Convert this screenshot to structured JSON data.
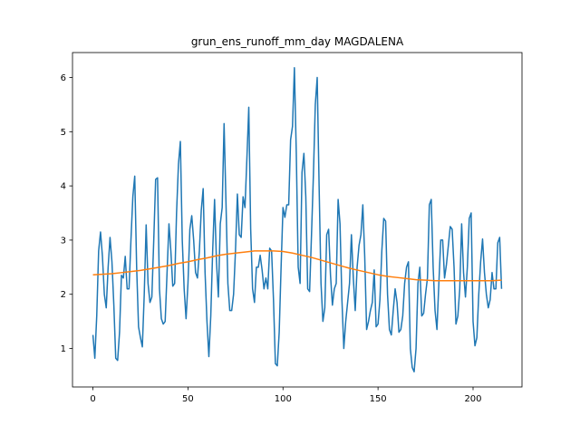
{
  "chart_data": {
    "type": "line",
    "title": "grun_ens_runoff_mm_day MAGDALENA",
    "series": [
      {
        "color": "#1f77b4",
        "x": [
          0,
          1,
          2,
          3,
          4,
          5,
          6,
          7,
          8,
          9,
          10,
          11,
          12,
          13,
          14,
          15,
          16,
          17,
          18,
          19,
          20,
          21,
          22,
          23,
          24,
          25,
          26,
          27,
          28,
          29,
          30,
          31,
          32,
          33,
          34,
          35,
          36,
          37,
          38,
          39,
          40,
          41,
          42,
          43,
          44,
          45,
          46,
          47,
          48,
          49,
          50,
          51,
          52,
          53,
          54,
          55,
          56,
          57,
          58,
          59,
          60,
          61,
          62,
          63,
          64,
          65,
          66,
          67,
          68,
          69,
          70,
          71,
          72,
          73,
          74,
          75,
          76,
          77,
          78,
          79,
          80,
          81,
          82,
          83,
          84,
          85,
          86,
          87,
          88,
          89,
          90,
          91,
          92,
          93,
          94,
          95,
          96,
          97,
          98,
          99,
          100,
          101,
          102,
          103,
          104,
          105,
          106,
          107,
          108,
          109,
          110,
          111,
          112,
          113,
          114,
          115,
          116,
          117,
          118,
          119,
          120,
          121,
          122,
          123,
          124,
          125,
          126,
          127,
          128,
          129,
          130,
          131,
          132,
          133,
          134,
          135,
          136,
          137,
          138,
          139,
          140,
          141,
          142,
          143,
          144,
          145,
          146,
          147,
          148,
          149,
          150,
          151,
          152,
          153,
          154,
          155,
          156,
          157,
          158,
          159,
          160,
          161,
          162,
          163,
          164,
          165,
          166,
          167,
          168,
          169,
          170,
          171,
          172,
          173,
          174,
          175,
          176,
          177,
          178,
          179,
          180,
          181,
          182,
          183,
          184,
          185,
          186,
          187,
          188,
          189,
          190,
          191,
          192,
          193,
          194,
          195,
          196,
          197,
          198,
          199,
          200,
          201,
          202,
          203,
          204,
          205,
          206,
          207,
          208,
          209,
          210,
          211,
          212,
          213,
          214,
          215
        ],
        "values": [
          1.25,
          0.82,
          1.6,
          2.8,
          3.15,
          2.7,
          2.0,
          1.75,
          2.5,
          3.05,
          2.6,
          1.8,
          0.82,
          0.78,
          1.3,
          2.35,
          2.3,
          2.7,
          2.1,
          2.1,
          3.0,
          3.8,
          4.18,
          2.5,
          1.4,
          1.2,
          1.03,
          2.0,
          3.28,
          2.2,
          1.85,
          1.95,
          3.0,
          4.12,
          4.15,
          2.1,
          1.55,
          1.45,
          1.5,
          2.4,
          3.3,
          2.8,
          2.15,
          2.2,
          3.5,
          4.4,
          4.82,
          3.0,
          2.1,
          1.55,
          2.2,
          3.2,
          3.45,
          3.0,
          2.4,
          2.3,
          2.8,
          3.55,
          3.95,
          2.4,
          1.5,
          0.85,
          1.6,
          2.8,
          3.75,
          2.6,
          1.95,
          3.3,
          3.6,
          5.15,
          3.7,
          2.2,
          1.7,
          1.7,
          2.0,
          2.8,
          3.85,
          3.1,
          3.05,
          3.8,
          3.6,
          4.5,
          5.45,
          3.2,
          2.1,
          1.85,
          2.5,
          2.5,
          2.72,
          2.45,
          2.1,
          2.3,
          2.1,
          2.85,
          2.8,
          1.9,
          0.72,
          0.68,
          1.3,
          2.5,
          3.6,
          3.42,
          3.65,
          3.65,
          4.85,
          5.1,
          6.18,
          4.6,
          2.5,
          2.2,
          4.25,
          4.6,
          3.8,
          2.1,
          2.05,
          3.1,
          4.2,
          5.5,
          6.0,
          4.0,
          2.2,
          1.5,
          1.75,
          3.1,
          3.2,
          2.35,
          1.8,
          2.1,
          2.2,
          3.75,
          3.3,
          1.9,
          1.0,
          1.5,
          1.85,
          2.2,
          3.1,
          2.3,
          1.7,
          2.5,
          2.9,
          3.1,
          3.65,
          2.7,
          1.35,
          1.5,
          1.7,
          1.85,
          2.45,
          1.4,
          1.45,
          1.9,
          2.8,
          3.4,
          3.35,
          2.0,
          1.35,
          1.25,
          1.7,
          2.1,
          1.85,
          1.3,
          1.35,
          1.6,
          2.2,
          2.5,
          2.6,
          1.0,
          0.65,
          0.57,
          1.0,
          2.2,
          2.5,
          1.6,
          1.65,
          2.0,
          2.3,
          3.65,
          3.75,
          2.5,
          1.7,
          1.35,
          2.2,
          3.0,
          3.0,
          2.3,
          2.55,
          2.9,
          3.25,
          3.2,
          2.5,
          1.45,
          1.6,
          2.1,
          3.3,
          2.4,
          1.95,
          2.5,
          3.4,
          3.5,
          1.5,
          1.05,
          1.2,
          2.0,
          2.6,
          3.02,
          2.4,
          2.0,
          1.75,
          1.9,
          2.4,
          2.1,
          2.1,
          2.95,
          3.05,
          2.1
        ]
      },
      {
        "color": "#ff7f0e",
        "x": [
          0,
          5,
          10,
          15,
          20,
          25,
          30,
          35,
          40,
          45,
          50,
          55,
          60,
          65,
          70,
          75,
          80,
          85,
          90,
          95,
          100,
          105,
          110,
          115,
          120,
          125,
          130,
          135,
          140,
          145,
          150,
          155,
          160,
          165,
          170,
          175,
          180,
          185,
          190,
          195,
          200,
          205,
          210,
          215
        ],
        "values": [
          2.36,
          2.37,
          2.38,
          2.4,
          2.42,
          2.44,
          2.47,
          2.5,
          2.53,
          2.57,
          2.6,
          2.64,
          2.67,
          2.71,
          2.74,
          2.76,
          2.78,
          2.8,
          2.8,
          2.8,
          2.79,
          2.76,
          2.72,
          2.68,
          2.63,
          2.58,
          2.53,
          2.48,
          2.44,
          2.4,
          2.36,
          2.33,
          2.31,
          2.29,
          2.27,
          2.26,
          2.25,
          2.25,
          2.25,
          2.25,
          2.25,
          2.25,
          2.25,
          2.26
        ]
      }
    ],
    "xlim": [
      -10.75,
      225.75
    ],
    "xticks": [
      0,
      50,
      100,
      150,
      200
    ],
    "ylim": [
      0.29,
      6.46
    ],
    "yticks": [
      1,
      2,
      3,
      4,
      5,
      6
    ]
  }
}
